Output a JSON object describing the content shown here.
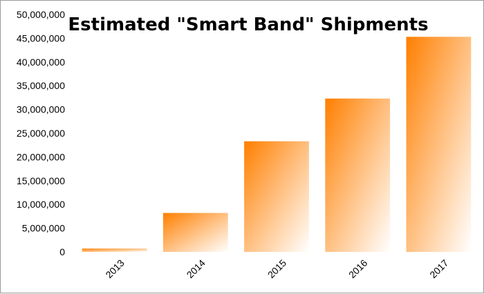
{
  "chart_data": {
    "type": "bar",
    "title": "Estimated \"Smart Band\" Shipments",
    "xlabel": "",
    "ylabel": "",
    "categories": [
      "2013",
      "2014",
      "2015",
      "2016",
      "2017"
    ],
    "values": [
      700000,
      8200000,
      23300000,
      32300000,
      45300000
    ],
    "ylim": [
      0,
      50000000
    ],
    "yticks": [
      "0",
      "5,000,000",
      "10,000,000",
      "15,000,000",
      "20,000,000",
      "25,000,000",
      "30,000,000",
      "35,000,000",
      "40,000,000",
      "45,000,000",
      "50,000,000"
    ],
    "grid": false,
    "legend": "none",
    "colors": {
      "bar_top": "#ff7f00",
      "bar_bottom": "#ffffff",
      "frame": "#9a9a9a"
    }
  }
}
